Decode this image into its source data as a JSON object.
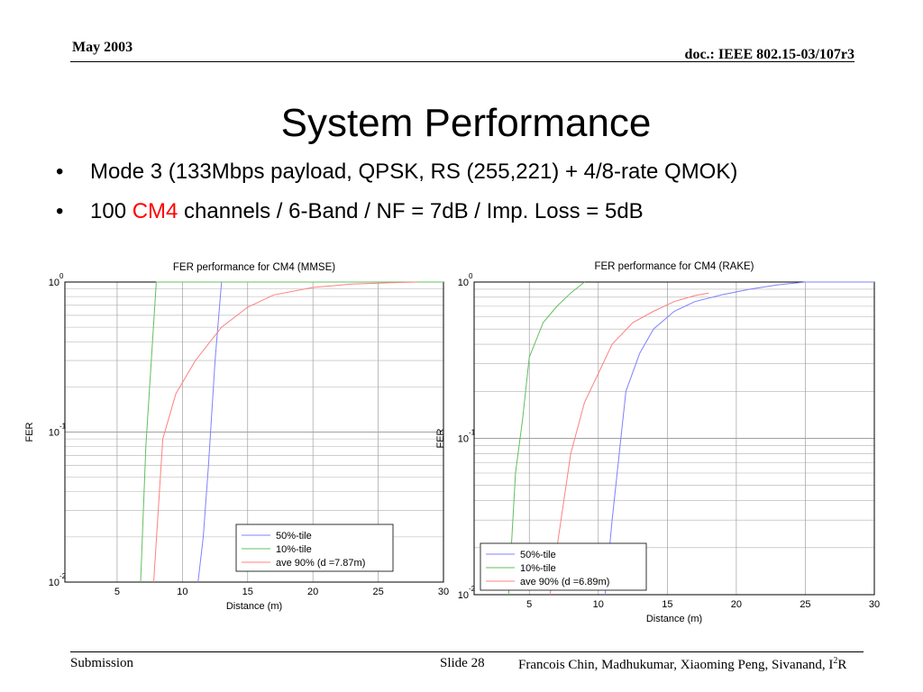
{
  "header": {
    "date": "May 2003",
    "doc": "doc.: IEEE 802.15-03/107r3"
  },
  "title": "System Performance",
  "bullets": [
    {
      "text": "Mode 3 (133Mbps payload, QPSK, RS (255,221) + 4/8-rate QMOK)"
    },
    {
      "pre": "100 ",
      "highlight": "CM4",
      "post": " channels / 6-Band / NF = 7dB / Imp. Loss = 5dB"
    }
  ],
  "footer": {
    "left": "Submission",
    "slide": "Slide 28",
    "authors": "Francois Chin, Madhukumar, Xiaoming Peng, Sivanand, I",
    "authors_sup": "2",
    "authors_end": "R"
  },
  "colors": {
    "series_50": "#8080ff",
    "series_10": "#60c060",
    "series_ave": "#ff8080",
    "highlight": "#ff0000"
  },
  "chart_data": [
    {
      "type": "line",
      "title": "FER performance for CM4 (MMSE)",
      "xlabel": "Distance (m)",
      "ylabel": "FER",
      "xlim": [
        1,
        30
      ],
      "ylim": [
        0.01,
        1
      ],
      "yscale": "log",
      "xticks": [
        5,
        10,
        15,
        20,
        25,
        30
      ],
      "yticks": [
        {
          "base": "10",
          "exp": "0",
          "value": 1
        },
        {
          "base": "10",
          "exp": "-1",
          "value": 0.1
        },
        {
          "base": "10",
          "exp": "-2",
          "value": 0.01
        }
      ],
      "grid": true,
      "legend": "bottom-right",
      "series": [
        {
          "name": "50%-tile",
          "color": "#8080ff",
          "x": [
            11.2,
            11.6,
            12.0,
            12.5,
            13.0,
            14,
            30
          ],
          "y": [
            0.01,
            0.02,
            0.06,
            0.3,
            1,
            1,
            1
          ]
        },
        {
          "name": "10%-tile",
          "color": "#60c060",
          "x": [
            6.8,
            7.2,
            8.0,
            9,
            30
          ],
          "y": [
            0.01,
            0.08,
            1,
            1,
            1
          ]
        },
        {
          "name": "ave 90% (d =7.87m)",
          "color": "#ff8080",
          "x": [
            7.8,
            8.5,
            9.5,
            11,
            13,
            15,
            17,
            20,
            23,
            26,
            28
          ],
          "y": [
            0.01,
            0.09,
            0.18,
            0.3,
            0.5,
            0.68,
            0.82,
            0.92,
            0.97,
            0.99,
            1
          ]
        }
      ]
    },
    {
      "type": "line",
      "title": "FER performance for CM4 (RAKE)",
      "xlabel": "Distance (m)",
      "ylabel": "FER",
      "xlim": [
        1,
        30
      ],
      "ylim": [
        0.01,
        1
      ],
      "yscale": "log",
      "xticks": [
        5,
        10,
        15,
        20,
        25,
        30
      ],
      "yticks": [
        {
          "base": "10",
          "exp": "0",
          "value": 1
        },
        {
          "base": "10",
          "exp": "-1",
          "value": 0.1
        },
        {
          "base": "10",
          "exp": "-2",
          "value": 0.01
        }
      ],
      "grid": true,
      "legend": "bottom-left",
      "series": [
        {
          "name": "50%-tile",
          "color": "#8080ff",
          "x": [
            10.5,
            11.0,
            12.0,
            13.0,
            14.0,
            15.5,
            17,
            19,
            21,
            23,
            25,
            30
          ],
          "y": [
            0.01,
            0.03,
            0.2,
            0.35,
            0.5,
            0.65,
            0.75,
            0.83,
            0.9,
            0.96,
            1,
            1
          ]
        },
        {
          "name": "10%-tile",
          "color": "#60c060",
          "x": [
            3.5,
            4.0,
            4.5,
            5.0,
            6.0,
            7.0,
            8.0,
            9.0
          ],
          "y": [
            0.01,
            0.06,
            0.13,
            0.33,
            0.55,
            0.7,
            0.85,
            1
          ]
        },
        {
          "name": "ave 90% (d =6.89m)",
          "color": "#ff8080",
          "x": [
            6.5,
            7.0,
            8.0,
            9.0,
            10.0,
            11.0,
            12.5,
            14.0,
            15.5,
            17.0,
            18.0
          ],
          "y": [
            0.01,
            0.02,
            0.08,
            0.17,
            0.26,
            0.4,
            0.55,
            0.65,
            0.75,
            0.82,
            0.85
          ]
        }
      ]
    }
  ]
}
